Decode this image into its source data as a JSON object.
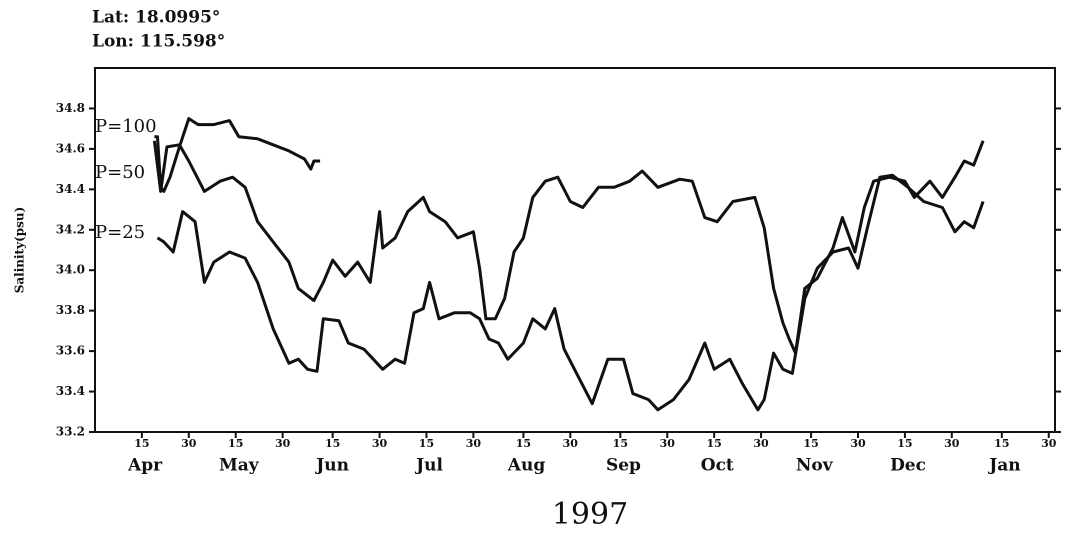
{
  "chart_data": {
    "type": "line",
    "annotations": [
      "Lat: 18.0995°",
      "Lon: 115.598°"
    ],
    "ylabel": "Salinity(psu)",
    "xlabel": "1997",
    "xlim": [
      90,
      397
    ],
    "ylim": [
      33.2,
      35.0
    ],
    "yticks": [
      33.2,
      33.4,
      33.6,
      33.8,
      {
        "value": 34,
        "label": "34.0"
      },
      34.2,
      34.4,
      34.6,
      34.8
    ],
    "xticks": [
      105,
      120,
      135,
      150,
      166,
      181,
      196,
      211,
      227,
      242,
      258,
      273,
      288,
      303,
      319,
      334,
      349,
      364,
      380,
      395
    ],
    "xtick_labels": [
      "15",
      "30",
      "15",
      "30",
      "15",
      "30",
      "15",
      "30",
      "15",
      "30",
      "15",
      "30",
      "15",
      "30",
      "15",
      "30",
      "15",
      "30",
      "15",
      "30"
    ],
    "xmonths": [
      {
        "value": 106,
        "label": "Apr"
      },
      {
        "value": 136,
        "label": "May"
      },
      {
        "value": 166,
        "label": "Jun"
      },
      {
        "value": 197,
        "label": "Jul"
      },
      {
        "value": 228,
        "label": "Aug"
      },
      {
        "value": 259,
        "label": "Sep"
      },
      {
        "value": 289,
        "label": "Oct"
      },
      {
        "value": 320,
        "label": "Nov"
      },
      {
        "value": 350,
        "label": "Dec"
      },
      {
        "value": 381,
        "label": "Jan"
      }
    ],
    "series": [
      {
        "name": "P=100",
        "color": "#111111",
        "x": [
          109,
          110,
          111,
          112,
          114,
          117,
          120,
          123,
          128,
          133,
          136,
          142,
          147,
          152,
          157,
          159,
          160,
          162
        ],
        "values": [
          34.66,
          34.66,
          34.41,
          34.39,
          34.46,
          34.61,
          34.75,
          34.72,
          34.72,
          34.74,
          34.66,
          34.65,
          34.62,
          34.59,
          34.55,
          34.5,
          34.54,
          34.54
        ]
      },
      {
        "name": "P=50",
        "color": "#111111",
        "x": [
          109,
          111,
          113,
          117,
          120,
          125,
          130,
          134,
          138,
          142,
          147,
          152,
          155,
          160,
          163,
          166,
          170,
          174,
          178,
          181,
          182,
          186,
          190,
          195,
          197,
          202,
          206,
          211,
          213,
          215,
          218,
          221,
          224,
          227,
          230,
          234,
          238,
          242,
          246,
          251,
          256,
          261,
          265,
          270,
          277,
          281,
          285,
          289,
          294,
          301,
          304,
          307,
          310,
          312,
          314,
          317,
          321,
          326,
          329,
          333,
          336,
          339,
          344,
          349,
          352,
          357,
          361,
          365,
          368,
          371,
          374
        ],
        "values": [
          34.64,
          34.39,
          34.61,
          34.62,
          34.54,
          34.39,
          34.44,
          34.46,
          34.41,
          34.24,
          34.14,
          34.04,
          33.91,
          33.85,
          33.94,
          34.05,
          33.97,
          34.04,
          33.94,
          34.29,
          34.11,
          34.16,
          34.29,
          34.36,
          34.29,
          34.24,
          34.16,
          34.19,
          34.01,
          33.76,
          33.76,
          33.86,
          34.09,
          34.16,
          34.36,
          34.44,
          34.46,
          34.34,
          34.31,
          34.41,
          34.41,
          34.44,
          34.49,
          34.41,
          34.45,
          34.44,
          34.26,
          34.24,
          34.34,
          34.36,
          34.21,
          33.91,
          33.74,
          33.66,
          33.59,
          33.91,
          33.96,
          34.11,
          34.26,
          34.09,
          34.31,
          34.44,
          34.46,
          34.44,
          34.36,
          34.44,
          34.36,
          34.46,
          34.54,
          34.52,
          34.64
        ]
      },
      {
        "name": "P=25",
        "color": "#111111",
        "x": [
          110,
          112,
          115,
          118,
          122,
          125,
          128,
          133,
          138,
          142,
          147,
          152,
          155,
          158,
          161,
          163,
          168,
          171,
          176,
          179,
          182,
          186,
          189,
          192,
          195,
          197,
          200,
          205,
          210,
          213,
          216,
          219,
          222,
          227,
          230,
          234,
          237,
          240,
          245,
          249,
          254,
          259,
          262,
          267,
          270,
          275,
          280,
          285,
          288,
          293,
          297,
          302,
          304,
          307,
          310,
          313,
          317,
          321,
          326,
          331,
          334,
          337,
          341,
          345,
          350,
          355,
          361,
          365,
          368,
          371,
          374
        ],
        "values": [
          34.16,
          34.14,
          34.09,
          34.29,
          34.24,
          33.94,
          34.04,
          34.09,
          34.06,
          33.94,
          33.71,
          33.54,
          33.56,
          33.51,
          33.5,
          33.76,
          33.75,
          33.64,
          33.61,
          33.56,
          33.51,
          33.56,
          33.54,
          33.79,
          33.81,
          33.94,
          33.76,
          33.79,
          33.79,
          33.76,
          33.66,
          33.64,
          33.56,
          33.64,
          33.76,
          33.71,
          33.81,
          33.61,
          33.46,
          33.34,
          33.56,
          33.56,
          33.39,
          33.36,
          33.31,
          33.36,
          33.46,
          33.64,
          33.51,
          33.56,
          33.44,
          33.31,
          33.36,
          33.59,
          33.51,
          33.49,
          33.86,
          34.01,
          34.09,
          34.11,
          34.01,
          34.21,
          34.46,
          34.47,
          34.41,
          34.34,
          34.31,
          34.19,
          34.24,
          34.21,
          34.34
        ]
      }
    ]
  }
}
